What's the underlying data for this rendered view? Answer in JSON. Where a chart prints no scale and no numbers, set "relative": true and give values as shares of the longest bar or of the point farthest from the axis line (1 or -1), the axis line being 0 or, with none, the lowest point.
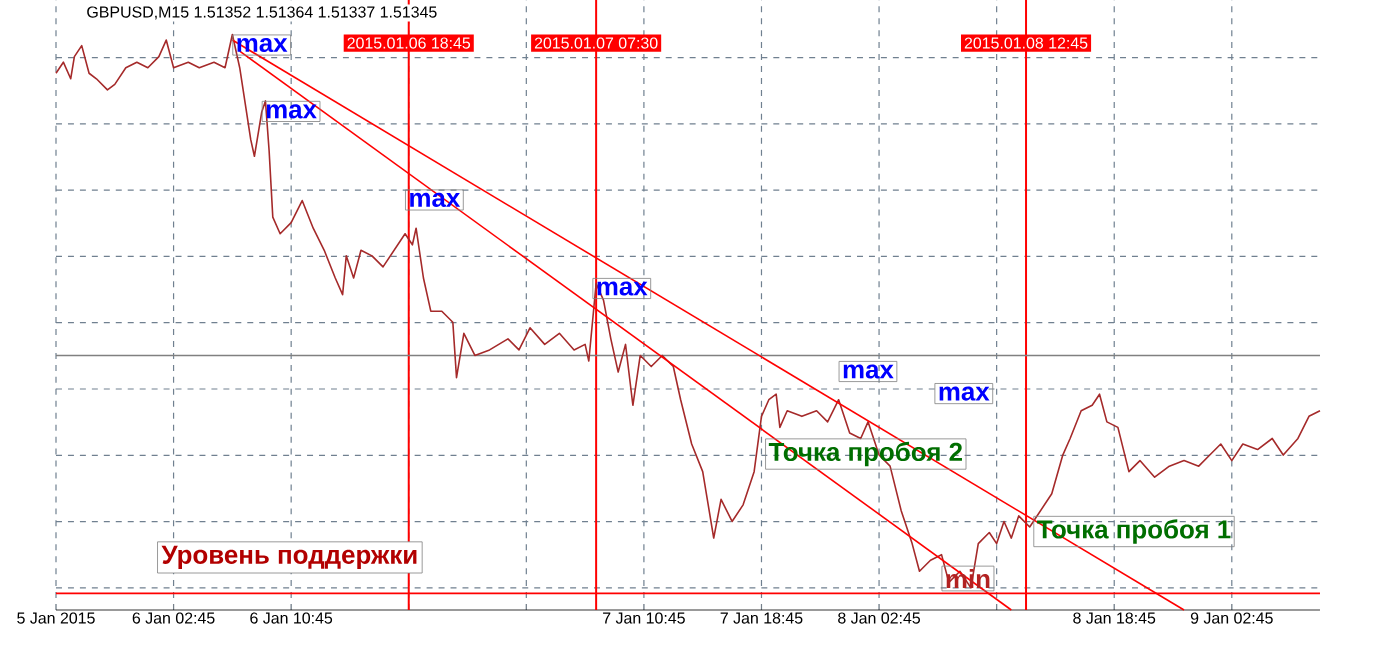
{
  "chart_data": {
    "type": "line",
    "title": "GBPUSD,M15  1.51352 1.51364 1.51337 1.51345",
    "relative": true,
    "grid": true,
    "tick_labels": "x",
    "line_style": "solid",
    "xlim": [
      "2015-01-05T18:45",
      "2015-01-09T08:45"
    ],
    "xticks": [
      {
        "value": "2015-01-05T18:45",
        "label": "5 Jan 2015"
      },
      {
        "value": "2015-01-06T02:45",
        "label": "6 Jan 02:45"
      },
      {
        "value": "2015-01-06T10:45",
        "label": "6 Jan 10:45"
      },
      {
        "value": "2015-01-06T18:45",
        "label": null
      },
      {
        "value": "2015-01-07T02:45",
        "label": null
      },
      {
        "value": "2015-01-07T10:45",
        "label": "7 Jan 10:45"
      },
      {
        "value": "2015-01-07T18:45",
        "label": "7 Jan 18:45"
      },
      {
        "value": "2015-01-08T02:45",
        "label": "8 Jan 02:45"
      },
      {
        "value": "2015-01-08T10:45",
        "label": null
      },
      {
        "value": "2015-01-08T18:45",
        "label": "8 Jan 18:45"
      },
      {
        "value": "2015-01-09T02:45",
        "label": "9 Jan 02:45"
      }
    ],
    "series": [
      {
        "color": "#a52a2a",
        "x": [
          "2015-01-05T18:45",
          "2015-01-05T19:15",
          "2015-01-05T19:45",
          "2015-01-05T20:00",
          "2015-01-05T20:30",
          "2015-01-05T21:00",
          "2015-01-05T21:30",
          "2015-01-05T22:15",
          "2015-01-05T22:45",
          "2015-01-05T23:30",
          "2015-01-06T00:15",
          "2015-01-06T01:00",
          "2015-01-06T01:45",
          "2015-01-06T02:15",
          "2015-01-06T02:45",
          "2015-01-06T03:45",
          "2015-01-06T04:30",
          "2015-01-06T05:30",
          "2015-01-06T06:15",
          "2015-01-06T06:45",
          "2015-01-06T07:15",
          "2015-01-06T08:00",
          "2015-01-06T08:15",
          "2015-01-06T08:45",
          "2015-01-06T09:00",
          "2015-01-06T09:15",
          "2015-01-06T09:30",
          "2015-01-06T10:00",
          "2015-01-06T10:45",
          "2015-01-06T11:30",
          "2015-01-06T12:15",
          "2015-01-06T13:00",
          "2015-01-06T13:45",
          "2015-01-06T14:15",
          "2015-01-06T14:30",
          "2015-01-06T15:00",
          "2015-01-06T15:30",
          "2015-01-06T16:15",
          "2015-01-06T17:00",
          "2015-01-06T17:45",
          "2015-01-06T18:30",
          "2015-01-06T19:00",
          "2015-01-06T19:15",
          "2015-01-06T19:45",
          "2015-01-06T20:15",
          "2015-01-06T21:00",
          "2015-01-06T21:45",
          "2015-01-06T22:00",
          "2015-01-06T22:30",
          "2015-01-06T23:15",
          "2015-01-07T00:15",
          "2015-01-07T01:30",
          "2015-01-07T02:15",
          "2015-01-07T03:00",
          "2015-01-07T04:00",
          "2015-01-07T05:00",
          "2015-01-07T06:00",
          "2015-01-07T06:45",
          "2015-01-07T07:00",
          "2015-01-07T07:30",
          "2015-01-07T08:00",
          "2015-01-07T08:30",
          "2015-01-07T09:00",
          "2015-01-07T09:30",
          "2015-01-07T10:00",
          "2015-01-07T10:30",
          "2015-01-07T11:15",
          "2015-01-07T12:00",
          "2015-01-07T12:45",
          "2015-01-07T13:15",
          "2015-01-07T14:00",
          "2015-01-07T14:45",
          "2015-01-07T15:30",
          "2015-01-07T16:00",
          "2015-01-07T16:45",
          "2015-01-07T17:30",
          "2015-01-07T18:15",
          "2015-01-07T18:45",
          "2015-01-07T19:15",
          "2015-01-07T19:45",
          "2015-01-07T20:00",
          "2015-01-07T20:30",
          "2015-01-07T21:30",
          "2015-01-07T22:30",
          "2015-01-07T23:15",
          "2015-01-08T00:00",
          "2015-01-08T00:45",
          "2015-01-08T01:30",
          "2015-01-08T02:00",
          "2015-01-08T02:45",
          "2015-01-08T03:30",
          "2015-01-08T04:15",
          "2015-01-08T05:00",
          "2015-01-08T05:30",
          "2015-01-08T06:15",
          "2015-01-08T07:00",
          "2015-01-08T07:30",
          "2015-01-08T08:15",
          "2015-01-08T09:00",
          "2015-01-08T09:30",
          "2015-01-08T10:15",
          "2015-01-08T10:45",
          "2015-01-08T11:15",
          "2015-01-08T11:45",
          "2015-01-08T12:15",
          "2015-01-08T13:00",
          "2015-01-08T13:45",
          "2015-01-08T14:30",
          "2015-01-08T15:15",
          "2015-01-08T15:45",
          "2015-01-08T16:30",
          "2015-01-08T17:15",
          "2015-01-08T17:45",
          "2015-01-08T18:15",
          "2015-01-08T19:00",
          "2015-01-08T19:45",
          "2015-01-08T20:30",
          "2015-01-08T21:30",
          "2015-01-08T22:30",
          "2015-01-08T23:30",
          "2015-01-09T00:30",
          "2015-01-09T01:15",
          "2015-01-09T02:00",
          "2015-01-09T02:45",
          "2015-01-09T03:30",
          "2015-01-09T04:30",
          "2015-01-09T05:30",
          "2015-01-09T06:15",
          "2015-01-09T07:15",
          "2015-01-09T08:00",
          "2015-01-09T08:45"
        ],
        "values": [
          0.93,
          0.95,
          0.92,
          0.96,
          0.98,
          0.93,
          0.92,
          0.9,
          0.91,
          0.94,
          0.95,
          0.94,
          0.96,
          0.99,
          0.94,
          0.95,
          0.94,
          0.95,
          0.94,
          1.0,
          0.94,
          0.81,
          0.78,
          0.86,
          0.88,
          0.79,
          0.67,
          0.64,
          0.66,
          0.7,
          0.65,
          0.61,
          0.56,
          0.53,
          0.6,
          0.56,
          0.61,
          0.6,
          0.58,
          0.61,
          0.64,
          0.62,
          0.65,
          0.56,
          0.5,
          0.5,
          0.48,
          0.38,
          0.46,
          0.42,
          0.43,
          0.45,
          0.43,
          0.47,
          0.44,
          0.46,
          0.43,
          0.44,
          0.41,
          0.55,
          0.52,
          0.45,
          0.39,
          0.44,
          0.33,
          0.42,
          0.4,
          0.42,
          0.4,
          0.34,
          0.26,
          0.21,
          0.09,
          0.16,
          0.12,
          0.15,
          0.21,
          0.31,
          0.34,
          0.35,
          0.29,
          0.32,
          0.31,
          0.32,
          0.3,
          0.34,
          0.28,
          0.27,
          0.3,
          0.24,
          0.22,
          0.14,
          0.08,
          0.03,
          0.05,
          0.06,
          0.01,
          0.03,
          0.0,
          0.08,
          0.1,
          0.08,
          0.12,
          0.09,
          0.13,
          0.11,
          0.14,
          0.17,
          0.24,
          0.27,
          0.32,
          0.33,
          0.35,
          0.3,
          0.29,
          0.21,
          0.23,
          0.2,
          0.22,
          0.23,
          0.22,
          0.24,
          0.26,
          0.23,
          0.26,
          0.25,
          0.27,
          0.24,
          0.27,
          0.31,
          0.32
        ]
      },
      {
        "color": "#ff0000",
        "x": [
          "2015-01-06T06:45",
          "2015-01-08T23:30"
        ],
        "values": [
          0.99,
          -0.04
        ]
      },
      {
        "color": "#ff0000",
        "x": [
          "2015-01-06T07:15",
          "2015-01-08T11:45"
        ],
        "values": [
          0.97,
          -0.04
        ]
      }
    ],
    "ref_lines": [
      {
        "axis": "x",
        "value": "2015-01-06T18:45",
        "label": "2015.01.06 18:45",
        "color": "#ff0000"
      },
      {
        "axis": "x",
        "value": "2015-01-07T07:30",
        "label": "2015.01.07 07:30",
        "color": "#ff0000"
      },
      {
        "axis": "x",
        "value": "2015-01-08T12:45",
        "label": "2015.01.08 12:45",
        "color": "#ff0000"
      },
      {
        "axis": "y",
        "value": -0.01,
        "label": "Уровень поддержки",
        "color": "#ff0000"
      },
      {
        "axis": "y",
        "value": 0.42,
        "color": "#808080"
      }
    ],
    "annotations": [
      {
        "text": "max",
        "x": "2015-01-06T06:45",
        "y": 1.0
      },
      {
        "text": "max",
        "x": "2015-01-06T08:45",
        "y": 0.88
      },
      {
        "text": "max",
        "x": "2015-01-06T18:30",
        "y": 0.72
      },
      {
        "text": "max",
        "x": "2015-01-07T07:15",
        "y": 0.56
      },
      {
        "text": "max",
        "x": "2015-01-08T00:00",
        "y": 0.41
      },
      "max",
      {
        "text": "min",
        "x": "2015-01-08T07:00",
        "y": 0.04
      },
      {
        "text": "Точка пробоя 2",
        "x": "2015-01-07T19:00",
        "y": 0.27
      },
      {
        "text": "Точка пробоя 1",
        "x": "2015-01-08T13:15",
        "y": 0.13
      }
    ]
  }
}
